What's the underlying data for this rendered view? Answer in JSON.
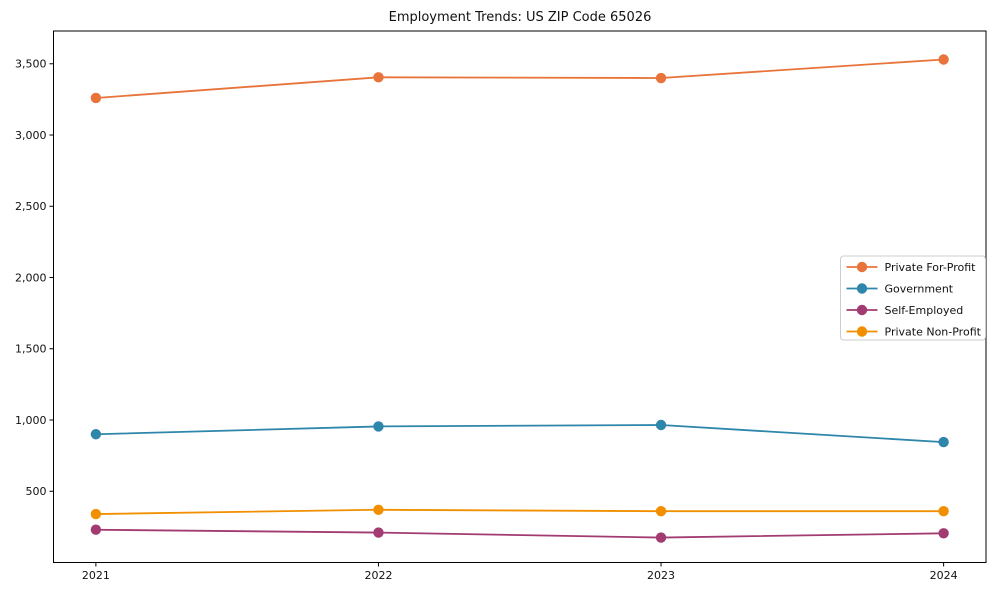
{
  "chart_data": {
    "type": "line",
    "title": "Employment Trends: US ZIP Code 65026",
    "xlabel": "",
    "ylabel": "",
    "x": [
      2021,
      2022,
      2023,
      2024
    ],
    "xtick_labels": [
      "2021",
      "2022",
      "2023",
      "2024"
    ],
    "yticks": [
      500,
      1000,
      1500,
      2000,
      2500,
      3000,
      3500
    ],
    "ytick_labels": [
      "500",
      "1,000",
      "1,500",
      "2,000",
      "2,500",
      "3,000",
      "3,500"
    ],
    "xlim": [
      2020.85,
      2024.15
    ],
    "ylim": [
      0,
      3730
    ],
    "grid": false,
    "legend_position": "center right",
    "marker": "circle",
    "series": [
      {
        "name": "Private For-Profit",
        "color": "#E8743B",
        "values": [
          3260,
          3405,
          3400,
          3530
        ]
      },
      {
        "name": "Government",
        "color": "#2E86AB",
        "values": [
          900,
          955,
          965,
          845
        ]
      },
      {
        "name": "Self-Employed",
        "color": "#A23B72",
        "values": [
          230,
          210,
          175,
          205
        ]
      },
      {
        "name": "Private Non-Profit",
        "color": "#F18F01",
        "values": [
          340,
          370,
          360,
          360
        ]
      }
    ],
    "colors": {
      "background": "#ffffff",
      "axis": "#000000",
      "text": "#111111",
      "legend_border": "#cccccc",
      "legend_background": "#ffffff"
    }
  }
}
